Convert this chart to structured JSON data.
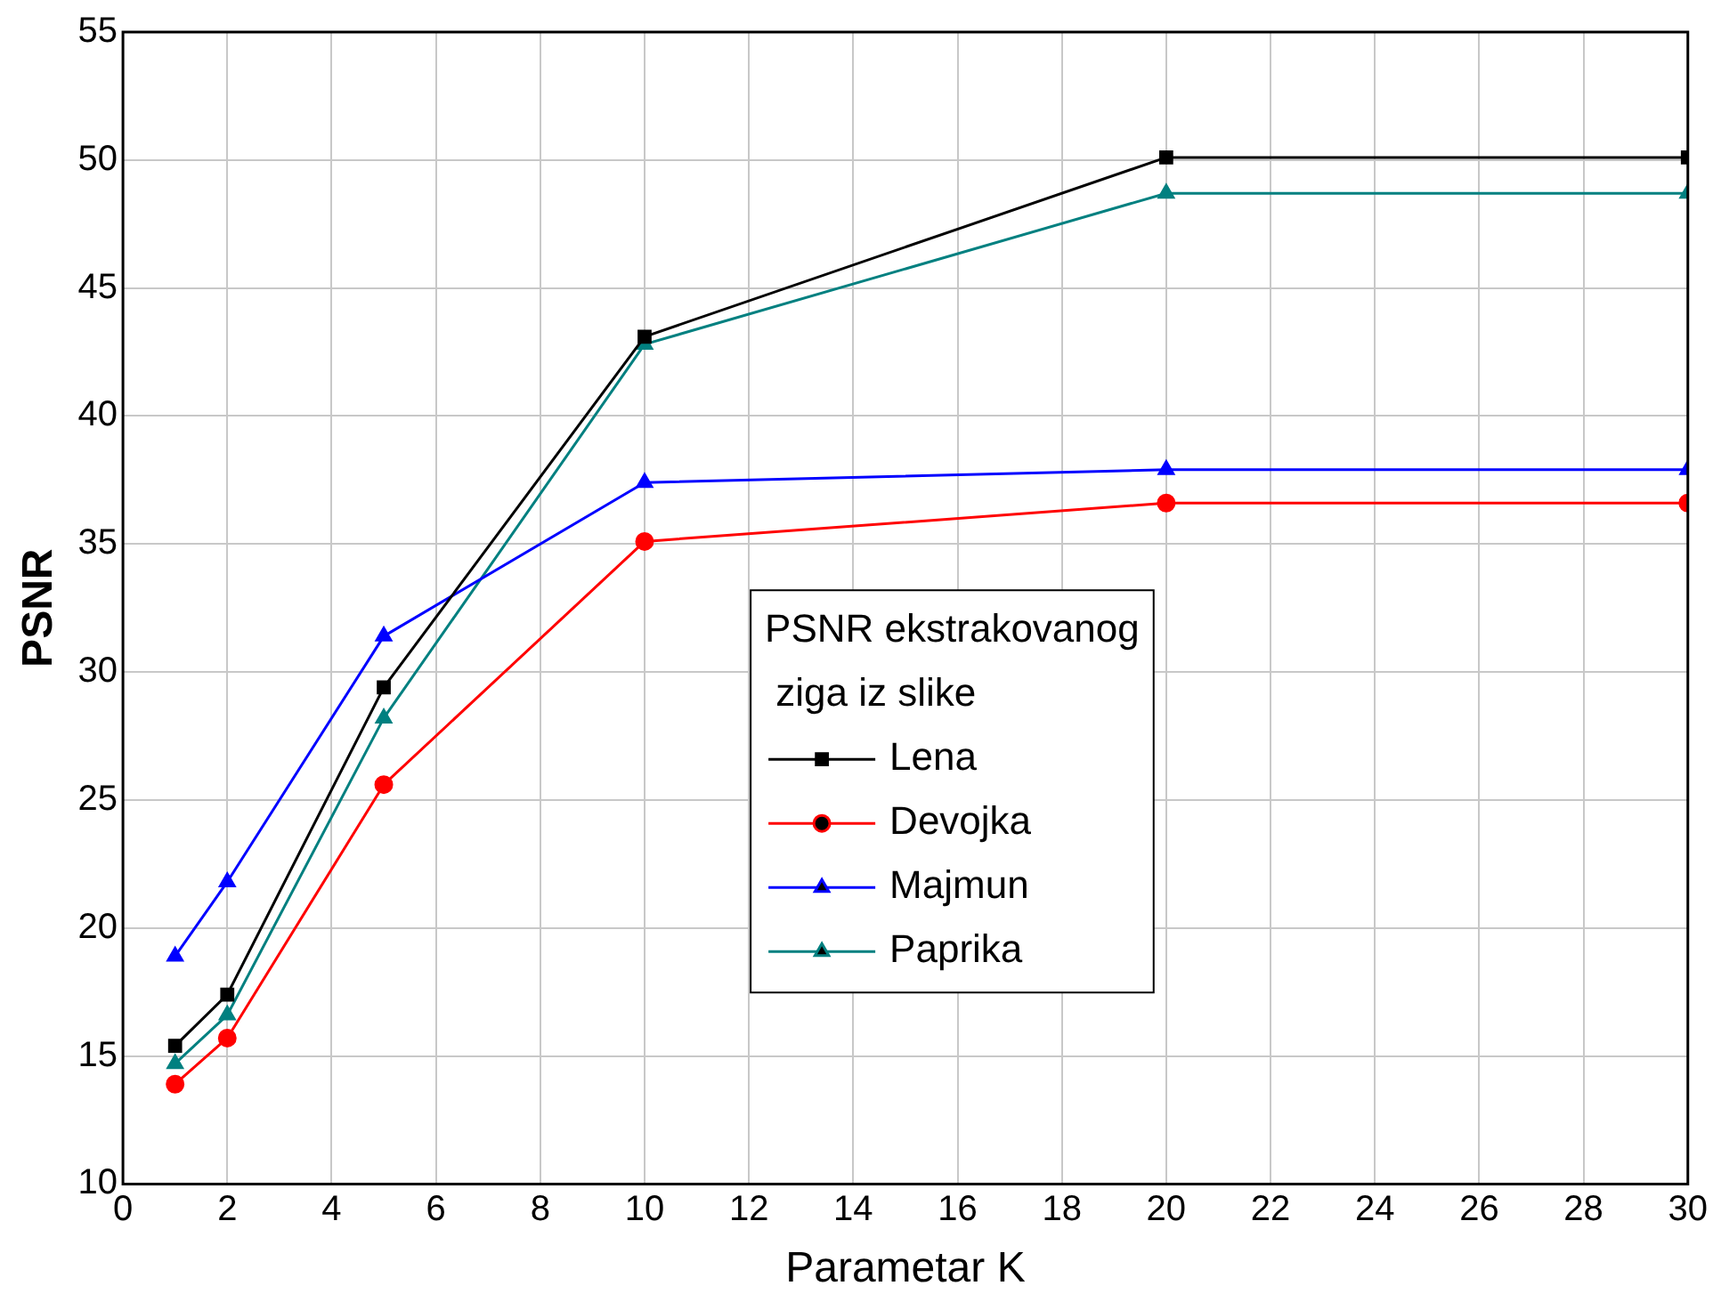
{
  "chart_data": {
    "type": "line",
    "xlabel": "Parametar K",
    "ylabel": "PSNR",
    "legend_title": "PSNR ekstrakovanog ziga iz slike",
    "x": [
      1,
      2,
      5,
      10,
      20,
      30
    ],
    "series": [
      {
        "name": "Lena",
        "color": "#000000",
        "marker": "square",
        "values": [
          15.4,
          17.4,
          29.4,
          43.1,
          50.1,
          50.1
        ]
      },
      {
        "name": "Devojka",
        "color": "#ff0000",
        "marker": "circle",
        "values": [
          13.9,
          15.7,
          25.6,
          35.1,
          36.6,
          36.6
        ]
      },
      {
        "name": "Majmun",
        "color": "#0000ff",
        "marker": "triangle",
        "values": [
          18.9,
          21.8,
          31.4,
          37.4,
          37.9,
          37.9
        ]
      },
      {
        "name": "Paprika",
        "color": "#008080",
        "marker": "triangle",
        "values": [
          14.7,
          16.6,
          28.2,
          42.8,
          48.7,
          48.7
        ]
      }
    ],
    "xlim": [
      0,
      30
    ],
    "xticks": [
      0,
      2,
      4,
      6,
      8,
      10,
      12,
      14,
      16,
      18,
      20,
      22,
      24,
      26,
      28,
      30
    ],
    "ylim": [
      10,
      55
    ],
    "yticks": [
      10,
      15,
      20,
      25,
      30,
      35,
      40,
      45,
      50,
      55
    ],
    "grid": true,
    "legend": "center right",
    "line_style": "solid"
  }
}
